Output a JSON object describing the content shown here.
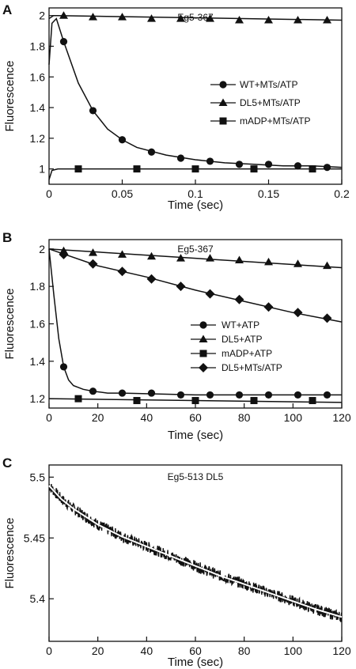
{
  "chart_data": [
    {
      "type": "line",
      "panel_label": "A",
      "title": "Eg5-367",
      "xlabel": "Time (sec)",
      "ylabel": "Fluorescence",
      "xlim": [
        0,
        0.2
      ],
      "ylim": [
        0.9,
        2.05
      ],
      "x_ticks": [
        0,
        0.05,
        0.1,
        0.15,
        0.2
      ],
      "x_tick_labels": [
        "0",
        "0.05",
        "0.1",
        "0.15",
        "0.2"
      ],
      "y_ticks": [
        1,
        1.2,
        1.4,
        1.6,
        1.8,
        2
      ],
      "y_tick_labels": [
        "1",
        "1.2",
        "1.4",
        "1.6",
        "1.8",
        "2"
      ],
      "legend_position": "right",
      "series": [
        {
          "name": "WT+MTs/ATP",
          "marker": "circle",
          "x": [
            0.01,
            0.03,
            0.05,
            0.07,
            0.09,
            0.11,
            0.13,
            0.15,
            0.17,
            0.19
          ],
          "y": [
            1.83,
            1.38,
            1.19,
            1.11,
            1.07,
            1.05,
            1.03,
            1.03,
            1.02,
            1.01
          ],
          "curve": {
            "x": [
              0,
              0.002,
              0.005,
              0.01,
              0.02,
              0.03,
              0.04,
              0.05,
              0.06,
              0.08,
              0.1,
              0.12,
              0.14,
              0.16,
              0.18,
              0.2
            ],
            "y": [
              1.68,
              1.95,
              1.98,
              1.83,
              1.56,
              1.38,
              1.26,
              1.19,
              1.14,
              1.09,
              1.06,
              1.04,
              1.03,
              1.02,
              1.02,
              1.01
            ]
          }
        },
        {
          "name": "DL5+MTs/ATP",
          "marker": "triangle",
          "x": [
            0.01,
            0.03,
            0.05,
            0.07,
            0.09,
            0.11,
            0.13,
            0.15,
            0.17,
            0.19
          ],
          "y": [
            2.0,
            1.99,
            1.99,
            1.98,
            1.98,
            1.98,
            1.97,
            1.97,
            1.97,
            1.97
          ],
          "curve": {
            "x": [
              0,
              0.003,
              0.006,
              0.2
            ],
            "y": [
              1.98,
              2.0,
              2.0,
              1.97
            ]
          }
        },
        {
          "name": "mADP+MTs/ATP",
          "marker": "square",
          "x": [
            0.02,
            0.06,
            0.1,
            0.14,
            0.18
          ],
          "y": [
            1.0,
            1.0,
            1.0,
            1.0,
            1.0
          ],
          "curve": {
            "x": [
              0,
              0.002,
              0.006,
              0.2
            ],
            "y": [
              0.93,
              0.99,
              1.0,
              1.0
            ]
          }
        }
      ]
    },
    {
      "type": "line",
      "panel_label": "B",
      "title": "Eg5-367",
      "xlabel": "Time (sec)",
      "ylabel": "Fluorescence",
      "xlim": [
        0,
        120
      ],
      "ylim": [
        1.15,
        2.05
      ],
      "x_ticks": [
        0,
        20,
        40,
        60,
        80,
        100,
        120
      ],
      "x_tick_labels": [
        "0",
        "20",
        "40",
        "60",
        "80",
        "100",
        "120"
      ],
      "y_ticks": [
        1.2,
        1.4,
        1.6,
        1.8,
        2
      ],
      "y_tick_labels": [
        "1.2",
        "1.4",
        "1.6",
        "1.8",
        "2"
      ],
      "legend_position": "right",
      "series": [
        {
          "name": "WT+ATP",
          "marker": "circle",
          "x": [
            6,
            18,
            30,
            42,
            54,
            66,
            78,
            90,
            102,
            114
          ],
          "y": [
            1.37,
            1.24,
            1.23,
            1.23,
            1.22,
            1.22,
            1.22,
            1.22,
            1.22,
            1.22
          ],
          "curve": {
            "x": [
              0,
              2,
              4,
              6,
              8,
              10,
              14,
              18,
              24,
              30,
              60,
              120
            ],
            "y": [
              2.0,
              1.75,
              1.52,
              1.37,
              1.3,
              1.27,
              1.25,
              1.24,
              1.23,
              1.23,
              1.22,
              1.22
            ]
          }
        },
        {
          "name": "DL5+ATP",
          "marker": "triangle",
          "x": [
            6,
            18,
            30,
            42,
            54,
            66,
            78,
            90,
            102,
            114
          ],
          "y": [
            1.99,
            1.98,
            1.97,
            1.96,
            1.95,
            1.95,
            1.94,
            1.93,
            1.92,
            1.91
          ],
          "curve": {
            "x": [
              0,
              120
            ],
            "y": [
              2.0,
              1.9
            ]
          }
        },
        {
          "name": "mADP+ATP",
          "marker": "square",
          "x": [
            12,
            36,
            60,
            84,
            108
          ],
          "y": [
            1.2,
            1.19,
            1.19,
            1.19,
            1.19
          ],
          "curve": {
            "x": [
              0,
              120
            ],
            "y": [
              1.2,
              1.18
            ]
          }
        },
        {
          "name": "DL5+MTs/ATP",
          "marker": "diamond",
          "x": [
            6,
            18,
            30,
            42,
            54,
            66,
            78,
            90,
            102,
            114
          ],
          "y": [
            1.97,
            1.92,
            1.88,
            1.84,
            1.8,
            1.76,
            1.73,
            1.69,
            1.66,
            1.63
          ],
          "curve": {
            "x": [
              0,
              20,
              40,
              60,
              80,
              100,
              120
            ],
            "y": [
              2.0,
              1.91,
              1.85,
              1.78,
              1.72,
              1.66,
              1.61
            ]
          }
        }
      ]
    },
    {
      "type": "line",
      "panel_label": "C",
      "title": "Eg5-513 DL5",
      "xlabel": "Time (sec)",
      "ylabel": "Fluorescence",
      "xlim": [
        0,
        120
      ],
      "ylim": [
        5.365,
        5.51
      ],
      "x_ticks": [
        0,
        20,
        40,
        60,
        80,
        100,
        120
      ],
      "x_tick_labels": [
        "0",
        "20",
        "40",
        "60",
        "80",
        "100",
        "120"
      ],
      "y_ticks": [
        5.4,
        5.45,
        5.5
      ],
      "y_tick_labels": [
        "5.4",
        "5.45",
        "5.5"
      ],
      "series": [
        {
          "marker": "none",
          "style": "noisy trace with white fitted curve",
          "x": [
            0,
            5,
            10,
            20,
            30,
            40,
            50,
            60,
            70,
            80,
            90,
            100,
            110,
            120
          ],
          "y": [
            5.493,
            5.482,
            5.474,
            5.461,
            5.451,
            5.443,
            5.435,
            5.427,
            5.419,
            5.412,
            5.405,
            5.398,
            5.391,
            5.385
          ]
        }
      ]
    }
  ]
}
